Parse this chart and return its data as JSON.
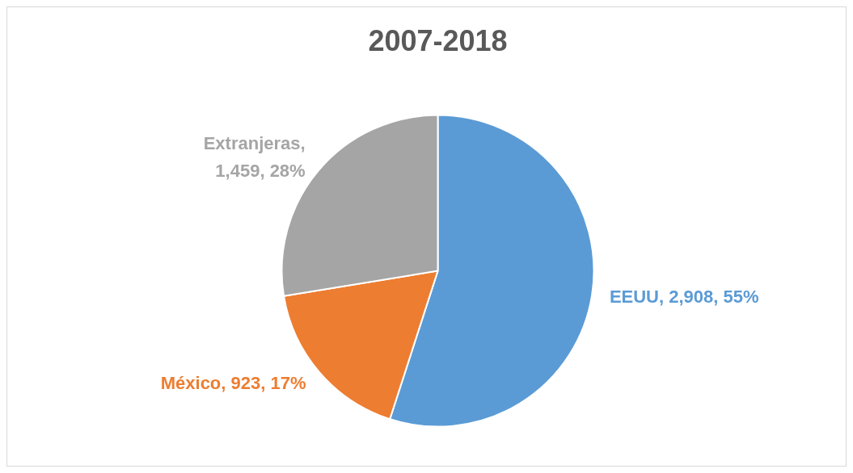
{
  "chart_data": {
    "type": "pie",
    "title": "2007-2018",
    "categories": [
      "EEUU",
      "México",
      "Extranjeras"
    ],
    "values": [
      2908,
      923,
      1459
    ],
    "colors": [
      "#5b9bd5",
      "#ed7d31",
      "#a5a5a5"
    ],
    "value_labels": [
      ", 2,908, 55%",
      ", 923, 17%",
      ", 1,459, 28%"
    ],
    "legend": false
  }
}
